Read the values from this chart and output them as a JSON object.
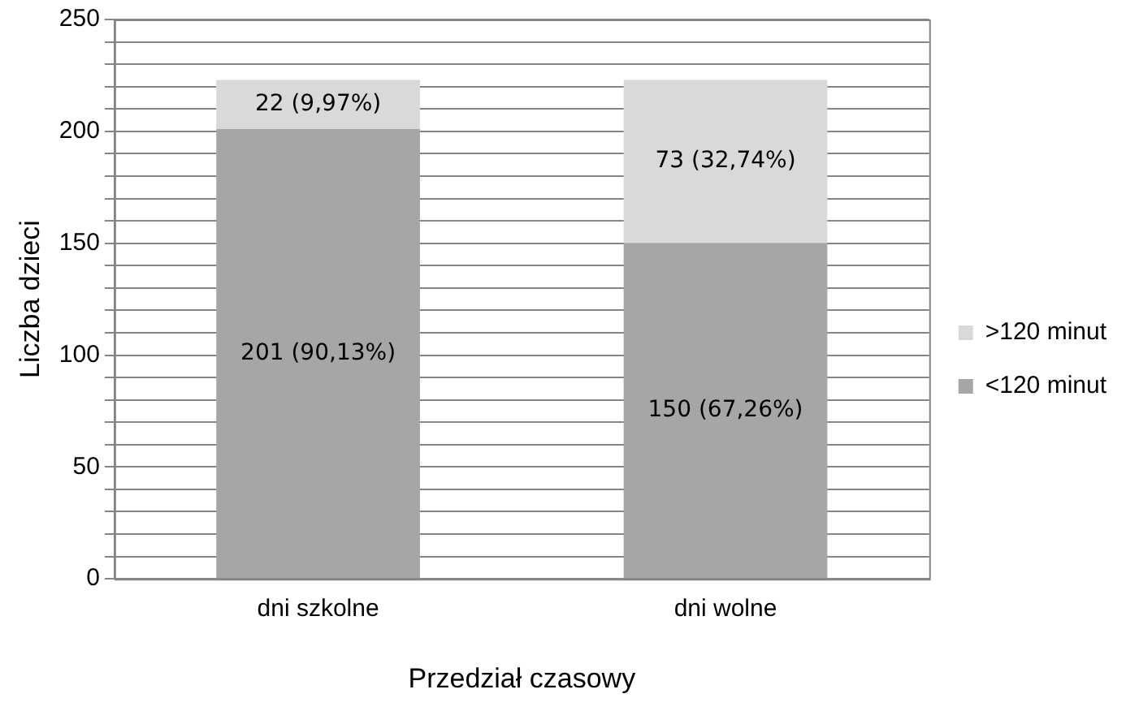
{
  "chart_data": {
    "type": "bar",
    "stacked": true,
    "xlabel": "Przedział czasowy",
    "ylabel": "Liczba dzieci",
    "categories": [
      "dni szkolne",
      "dni wolne"
    ],
    "series": [
      {
        "name": "<120 minut",
        "color": "#a6a6a6",
        "values": [
          201,
          150
        ],
        "value_labels": [
          "201 (90,13%)",
          "150 (67,26%)"
        ]
      },
      {
        "name": ">120 minut",
        "color": "#d9d9d9",
        "values": [
          22,
          73
        ],
        "value_labels": [
          "22 (9,97%)",
          "73 (32,74%)"
        ]
      }
    ],
    "ylim": [
      0,
      250
    ],
    "yticks": [
      0,
      {
        "value": 10,
        "label": null
      },
      {
        "value": 20,
        "label": null
      },
      {
        "value": 30,
        "label": null
      },
      {
        "value": 40,
        "label": null
      },
      50,
      {
        "value": 60,
        "label": null
      },
      {
        "value": 70,
        "label": null
      },
      {
        "value": 80,
        "label": null
      },
      {
        "value": 90,
        "label": null
      },
      100,
      {
        "value": 110,
        "label": null
      },
      {
        "value": 120,
        "label": null
      },
      {
        "value": 130,
        "label": null
      },
      {
        "value": 140,
        "label": null
      },
      150,
      {
        "value": 160,
        "label": null
      },
      {
        "value": 170,
        "label": null
      },
      {
        "value": 180,
        "label": null
      },
      {
        "value": 190,
        "label": null
      },
      200,
      {
        "value": 210,
        "label": null
      },
      {
        "value": 220,
        "label": null
      },
      {
        "value": 230,
        "label": null
      },
      {
        "value": 240,
        "label": null
      },
      250
    ],
    "grid": "y",
    "legend": "right"
  }
}
